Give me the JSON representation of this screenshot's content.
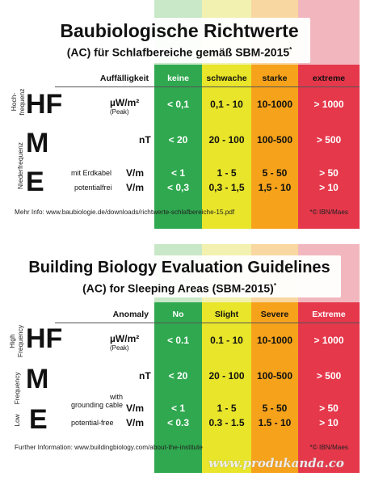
{
  "colors": {
    "none": "#2fa84f",
    "slight": "#e8e52a",
    "severe": "#f6a21b",
    "extreme": "#e5384b",
    "none_light": "#c9e8c8",
    "slight_light": "#f3f1b0",
    "severe_light": "#f9d7a1",
    "extreme_light": "#f2b7be"
  },
  "de": {
    "title": "Baubiologische Richtwerte",
    "subtitle": "(AC) für Schlafbereiche gemäß SBM-2015",
    "subtitle_mark": "*",
    "headers": [
      "Auffälligkeit",
      "keine",
      "schwache",
      "starke",
      "extreme"
    ],
    "hf_label": "Hoch-\nfrequenz",
    "nf_label": "Niederfrequenz",
    "hf_letters": "HF",
    "m_letter": "M",
    "e_letter": "E",
    "hf_unit": "µW/m²",
    "hf_unit_note": "(Peak)",
    "hf_values": [
      "< 0,1",
      "0,1 - 10",
      "10-1000",
      "> 1000"
    ],
    "m_unit": "nT",
    "m_values": [
      "< 20",
      "20 - 100",
      "100-500",
      "> 500"
    ],
    "e1_desc": "mit Erdkabel",
    "e1_unit": "V/m",
    "e1_values": [
      "< 1",
      "1 - 5",
      "5 - 50",
      "> 50"
    ],
    "e2_desc": "potentialfrei",
    "e2_unit": "V/m",
    "e2_values": [
      "< 0,3",
      "0,3 - 1,5",
      "1,5 - 10",
      "> 10"
    ],
    "footer_left": "Mehr Info: www.baubiologie.de/downloads/richtwerte-schlafbereiche-15.pdf",
    "footer_right": "*© IBN/Maes"
  },
  "en": {
    "title": "Building Biology Evaluation Guidelines",
    "subtitle": "(AC) for Sleeping Areas (SBM-2015)",
    "subtitle_mark": "*",
    "headers": [
      "Anomaly",
      "No",
      "Slight",
      "Severe",
      "Extreme"
    ],
    "hf_label": "High\nFrequency",
    "lf_label": "Low     Frequency",
    "hf_letters": "HF",
    "m_letter": "M",
    "e_letter": "E",
    "hf_unit": "µW/m²",
    "hf_unit_note": "(Peak)",
    "hf_values": [
      "< 0.1",
      "0.1 - 10",
      "10-1000",
      "> 1000"
    ],
    "m_unit": "nT",
    "m_values": [
      "< 20",
      "20 - 100",
      "100-500",
      "> 500"
    ],
    "e1_desc": "with\ngrounding cable",
    "e1_unit": "V/m",
    "e1_values": [
      "< 1",
      "1 - 5",
      "5 - 50",
      "> 50"
    ],
    "e2_desc": "potential-free",
    "e2_unit": "V/m",
    "e2_values": [
      "< 0.3",
      "0.3 - 1.5",
      "1.5 - 10",
      "> 10"
    ],
    "footer_left": "Further Information:  www.buildingbiology.com/about-the-institute",
    "footer_right": "*© IBN/Maes"
  },
  "watermark": "www.produkanda.co"
}
